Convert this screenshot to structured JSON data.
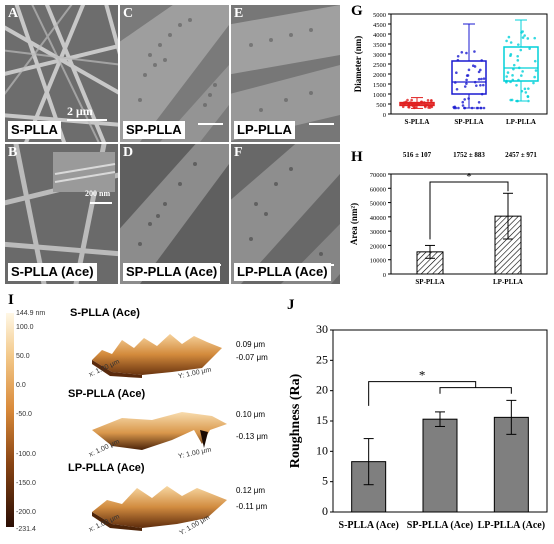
{
  "sem_panels": [
    {
      "letter": "A",
      "label": "S-PLLA",
      "scale_text": "2 μm"
    },
    {
      "letter": "B",
      "label": "S-PLLA (Ace)",
      "scale_text": "200 nm"
    },
    {
      "letter": "C",
      "label": "SP-PLLA"
    },
    {
      "letter": "D",
      "label": "SP-PLLA (Ace)"
    },
    {
      "letter": "E",
      "label": "LP-PLLA"
    },
    {
      "letter": "F",
      "label": "LP-PLLA (Ace)"
    }
  ],
  "afm": {
    "letter": "I",
    "colorbar": {
      "max_label": "144.9 nm",
      "ticks": [
        "100.0",
        "50.0",
        "0.0",
        "-50.0",
        "-100.0",
        "-150.0",
        "-200.0",
        "-231.4"
      ]
    },
    "surfaces": [
      {
        "title": "S-PLLA (Ace)",
        "z_max": "0.09 μm",
        "z_min": "-0.07 μm",
        "x_axis": "x: 1.00 μm",
        "y_axis": "Y: 1.00 μm"
      },
      {
        "title": "SP-PLLA (Ace)",
        "z_max": "0.10 μm",
        "z_min": "-0.13 μm",
        "x_axis": "x: 1.00 μm",
        "y_axis": "Y: 1.00 μm"
      },
      {
        "title": "LP-PLLA (Ace)",
        "z_max": "0.12 μm",
        "z_min": "-0.11 μm",
        "x_axis": "x: 1.00 μm",
        "y_axis": "Y: 1.00 μm"
      }
    ]
  },
  "chart_data": [
    {
      "id": "G",
      "type": "box",
      "ylabel": "Diameter (nm)",
      "ylim": [
        0,
        5000
      ],
      "yticks": [
        0,
        500,
        1000,
        1500,
        2000,
        2500,
        3000,
        3500,
        4000,
        4500,
        5000
      ],
      "categories": [
        "S-PLLA",
        "SP-PLLA",
        "LP-PLLA"
      ],
      "annotations": [
        "516 ± 107",
        "1752 ± 883",
        "2457 ± 971"
      ],
      "colors": [
        "#e02020",
        "#1a1ad0",
        "#00d0d8"
      ],
      "boxes": [
        {
          "q1": 430,
          "median": 500,
          "q3": 570,
          "mean": 516,
          "whisker_low": 280,
          "whisker_high": 820
        },
        {
          "q1": 1000,
          "median": 1600,
          "q3": 2650,
          "mean": 1752,
          "whisker_low": 300,
          "whisker_high": 4500
        },
        {
          "q1": 1650,
          "median": 2300,
          "q3": 3350,
          "mean": 2457,
          "whisker_low": 650,
          "whisker_high": 4700
        }
      ]
    },
    {
      "id": "H",
      "type": "bar",
      "ylabel": "Area (nm²)",
      "ylim": [
        0,
        70000
      ],
      "yticks": [
        0,
        10000,
        20000,
        30000,
        40000,
        50000,
        60000,
        70000
      ],
      "categories": [
        "SP-PLLA",
        "LP-PLLA"
      ],
      "values": [
        15500,
        40500
      ],
      "errors": [
        4500,
        16000
      ],
      "significance": "*"
    },
    {
      "id": "J",
      "type": "bar",
      "ylabel": "Roughness (Ra)",
      "ylim": [
        0,
        30
      ],
      "yticks": [
        0,
        5,
        10,
        15,
        20,
        25,
        30
      ],
      "categories": [
        "S-PLLA (Ace)",
        "SP-PLLA (Ace)",
        "LP-PLLA (Ace)"
      ],
      "values": [
        8.3,
        15.3,
        15.6
      ],
      "errors": [
        3.8,
        1.2,
        2.8
      ],
      "significance": "*"
    }
  ]
}
